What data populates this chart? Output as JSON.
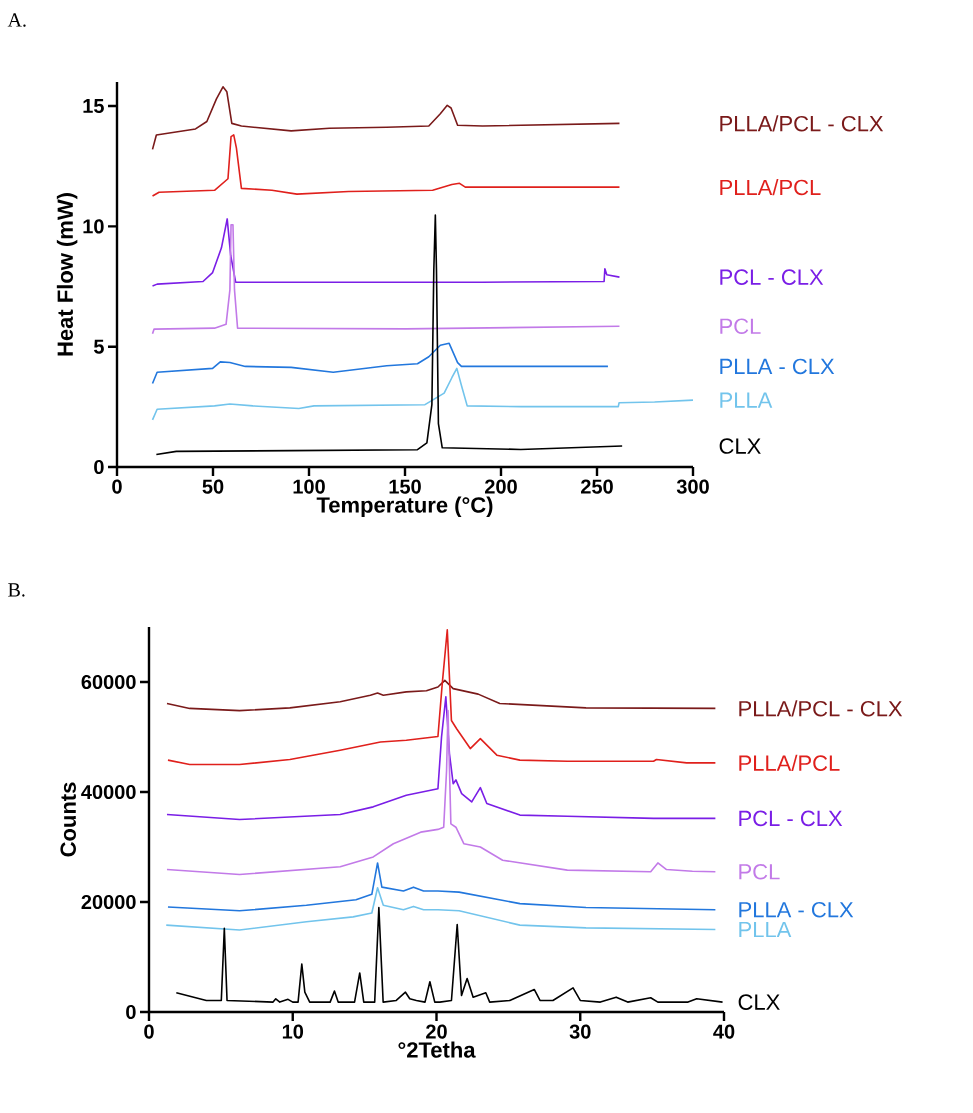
{
  "chart_data": [
    {
      "type": "line",
      "title": "A.",
      "xlabel": "Temperature (°C)",
      "ylabel": "Heat Flow (mW)",
      "xlim": [
        0,
        300
      ],
      "ylim": [
        0,
        16
      ],
      "xticks": [
        0,
        50,
        100,
        150,
        200,
        250,
        300
      ],
      "yticks": [
        0,
        5,
        10,
        15
      ],
      "series": [
        {
          "name": "PLLA/PCL - CLX",
          "color": "#7a1a1a",
          "x": [
            18.5,
            20.5,
            40.9,
            46.8,
            51.8,
            55.2,
            57.2,
            59.8,
            64.8,
            90.7,
            110.6,
            140.5,
            162.4,
            168.4,
            172,
            174,
            177.4,
            190.4,
            261.7
          ],
          "values": [
            13.2,
            13.8,
            14.05,
            14.36,
            15.3,
            15.8,
            15.6,
            14.28,
            14.17,
            13.97,
            14.08,
            14.12,
            14.17,
            14.68,
            15.03,
            14.92,
            14.2,
            14.17,
            14.28
          ]
        },
        {
          "name": "PLLA/PCL",
          "color": "#e0201c",
          "x": [
            18.5,
            21.9,
            50.8,
            57.8,
            59.4,
            60.8,
            62.2,
            64.8,
            80.7,
            93.7,
            120.6,
            164.4,
            174.4,
            178.4,
            181.4,
            261.7
          ],
          "values": [
            11.26,
            11.42,
            11.5,
            11.98,
            13.73,
            13.8,
            13.25,
            11.58,
            11.5,
            11.34,
            11.45,
            11.5,
            11.74,
            11.79,
            11.63,
            11.63
          ]
        },
        {
          "name": "PCL - CLX",
          "color": "#7a1ee6",
          "x": [
            18.5,
            20.9,
            44.8,
            49.8,
            54.4,
            57.4,
            59.2,
            61.8,
            110.6,
            190.4,
            253.7,
            254.1,
            255.1,
            261.7
          ],
          "values": [
            7.52,
            7.6,
            7.71,
            8.08,
            9.11,
            10.31,
            8.8,
            7.68,
            7.68,
            7.68,
            7.71,
            8.24,
            7.99,
            7.89
          ]
        },
        {
          "name": "PCL",
          "color": "#c27ae8",
          "x": [
            18.5,
            19.3,
            50.8,
            56.8,
            58.8,
            59.4,
            60.4,
            61.2,
            62.8,
            150.5,
            261.7
          ],
          "values": [
            5.54,
            5.73,
            5.77,
            5.93,
            7.36,
            10.07,
            10.07,
            7.36,
            5.77,
            5.74,
            5.85
          ]
        },
        {
          "name": "PLLA - CLX",
          "color": "#2277dd",
          "x": [
            18.5,
            20.9,
            49.8,
            53.8,
            58.8,
            66.8,
            90.7,
            112.6,
            140.5,
            156.5,
            162.4,
            168.4,
            173,
            177.4,
            179.4,
            255.7
          ],
          "values": [
            3.47,
            3.94,
            4.1,
            4.37,
            4.34,
            4.18,
            4.14,
            3.94,
            4.21,
            4.29,
            4.58,
            5.06,
            5.14,
            4.34,
            4.18,
            4.18
          ]
        },
        {
          "name": "PLLA",
          "color": "#72c4ec",
          "x": [
            18.5,
            20.9,
            50.8,
            58.8,
            70.8,
            94.7,
            102.6,
            160.4,
            170.4,
            174.4,
            177,
            179.4,
            182.4,
            210.3,
            261.1,
            261.5,
            280,
            300
          ],
          "values": [
            1.96,
            2.4,
            2.54,
            2.62,
            2.54,
            2.43,
            2.54,
            2.59,
            3.07,
            3.71,
            4.1,
            3.39,
            2.54,
            2.51,
            2.51,
            2.67,
            2.7,
            2.78
          ]
        },
        {
          "name": "CLX",
          "color": "#000000",
          "x": [
            20.5,
            30.9,
            90.7,
            156.5,
            161.4,
            164,
            165,
            165.8,
            166.4,
            167.4,
            169.4,
            210.3,
            263.1
          ],
          "values": [
            0.52,
            0.65,
            0.68,
            0.72,
            1.0,
            2.59,
            8.16,
            10.47,
            8.16,
            1.8,
            0.8,
            0.73,
            0.87
          ]
        }
      ]
    },
    {
      "type": "line",
      "title": "B.",
      "xlabel": "°2Tetha",
      "ylabel": "Counts",
      "xlim": [
        0,
        40
      ],
      "ylim": [
        0,
        70000
      ],
      "xticks": [
        0,
        10,
        20,
        30,
        40
      ],
      "yticks": [
        0,
        20000,
        40000,
        60000
      ],
      "series": [
        {
          "name": "PLLA/PCL - CLX",
          "color": "#7a1a1a",
          "x": [
            1.25,
            2.83,
            6.3,
            9.8,
            13.3,
            15.4,
            15.9,
            16.3,
            17.9,
            19.3,
            20.1,
            20.58,
            21.16,
            22.9,
            24.4,
            30.4,
            39.4
          ],
          "values": [
            56100,
            55200,
            54800,
            55300,
            56400,
            57600,
            58000,
            57600,
            58200,
            58400,
            59100,
            60300,
            58800,
            57800,
            56100,
            55300,
            55200
          ]
        },
        {
          "name": "PLLA/PCL",
          "color": "#e0201c",
          "x": [
            1.32,
            2.83,
            6.3,
            9.8,
            13.3,
            16.1,
            17.9,
            20.1,
            20.4,
            20.75,
            21.04,
            21.4,
            22.35,
            23.05,
            24.2,
            25.8,
            29.1,
            35.1,
            35.3,
            37.4,
            39.4
          ],
          "values": [
            45800,
            45000,
            45000,
            45900,
            47600,
            49100,
            49400,
            50100,
            59700,
            69500,
            53000,
            51500,
            47900,
            49700,
            46700,
            45800,
            45600,
            45600,
            45900,
            45300,
            45300
          ]
        },
        {
          "name": "PCL - CLX",
          "color": "#7a1ee6",
          "x": [
            1.25,
            6.3,
            13.3,
            15.6,
            17.9,
            20.1,
            20.35,
            20.65,
            20.9,
            21.16,
            21.35,
            21.75,
            22.45,
            23.05,
            23.5,
            25.8,
            29.1,
            35.1,
            39.4
          ],
          "values": [
            35900,
            35000,
            35900,
            37300,
            39400,
            40600,
            50000,
            57300,
            47000,
            41500,
            42200,
            39700,
            38200,
            40800,
            37900,
            35800,
            35600,
            35200,
            35200
          ]
        },
        {
          "name": "PCL",
          "color": "#c27ae8",
          "x": [
            1.25,
            6.3,
            13.3,
            15.6,
            17,
            18.9,
            20.1,
            20.5,
            20.7,
            20.8,
            21.0,
            21.35,
            21.9,
            23.05,
            24.6,
            29.1,
            34.9,
            35.4,
            36,
            37.8,
            39.4
          ],
          "values": [
            25900,
            25000,
            26400,
            28200,
            30600,
            32700,
            33200,
            33600,
            43900,
            54800,
            34200,
            33600,
            30600,
            30000,
            27600,
            25800,
            25500,
            27100,
            25900,
            25600,
            25500
          ]
        },
        {
          "name": "PLLA - CLX",
          "color": "#2277dd",
          "x": [
            1.32,
            6.3,
            10.95,
            14.4,
            15.5,
            15.9,
            16.2,
            17.7,
            18.4,
            19.1,
            20.1,
            21.57,
            25.8,
            30.4,
            39.4
          ],
          "values": [
            19100,
            18400,
            19400,
            20400,
            21400,
            27100,
            22700,
            22000,
            22700,
            22000,
            22000,
            21800,
            19700,
            19000,
            18600
          ]
        },
        {
          "name": "PLLA",
          "color": "#72c4ec",
          "x": [
            1.2,
            6.3,
            10.95,
            14.2,
            15.5,
            15.9,
            16.3,
            17.7,
            18.4,
            19.1,
            20.1,
            21.57,
            25.8,
            30.4,
            39.4
          ],
          "values": [
            15800,
            14900,
            16400,
            17300,
            18000,
            22600,
            19400,
            18600,
            19200,
            18600,
            18600,
            18400,
            15800,
            15300,
            15000
          ]
        },
        {
          "name": "CLX",
          "color": "#000000",
          "x": [
            1.9,
            3.99,
            5.03,
            5.24,
            5.43,
            8.63,
            8.82,
            9.1,
            9.67,
            10.0,
            10.37,
            10.63,
            10.84,
            11.18,
            12.6,
            12.9,
            13.16,
            14.3,
            14.66,
            14.94,
            15.7,
            15.99,
            16.29,
            17.2,
            17.84,
            18.14,
            18.6,
            19.2,
            19.54,
            19.88,
            20.23,
            21.04,
            21.44,
            21.74,
            22.13,
            22.55,
            23.43,
            23.7,
            25.1,
            26.8,
            27.2,
            28.1,
            29.5,
            30.0,
            31.4,
            32.5,
            33.3,
            34.9,
            35.4,
            37.5,
            38.1,
            39.9
          ],
          "values": [
            3500,
            2100,
            2100,
            15200,
            2100,
            1800,
            2400,
            1800,
            2300,
            1800,
            1800,
            8700,
            3600,
            1800,
            1800,
            3800,
            1800,
            1800,
            7100,
            1800,
            1800,
            19000,
            1800,
            2100,
            3600,
            2400,
            2100,
            1800,
            5500,
            1800,
            1800,
            2100,
            15900,
            3000,
            6100,
            2700,
            3500,
            1800,
            2100,
            4100,
            2100,
            2100,
            4400,
            2100,
            1800,
            2700,
            1800,
            2600,
            1800,
            1800,
            2400,
            1800
          ]
        }
      ]
    }
  ]
}
